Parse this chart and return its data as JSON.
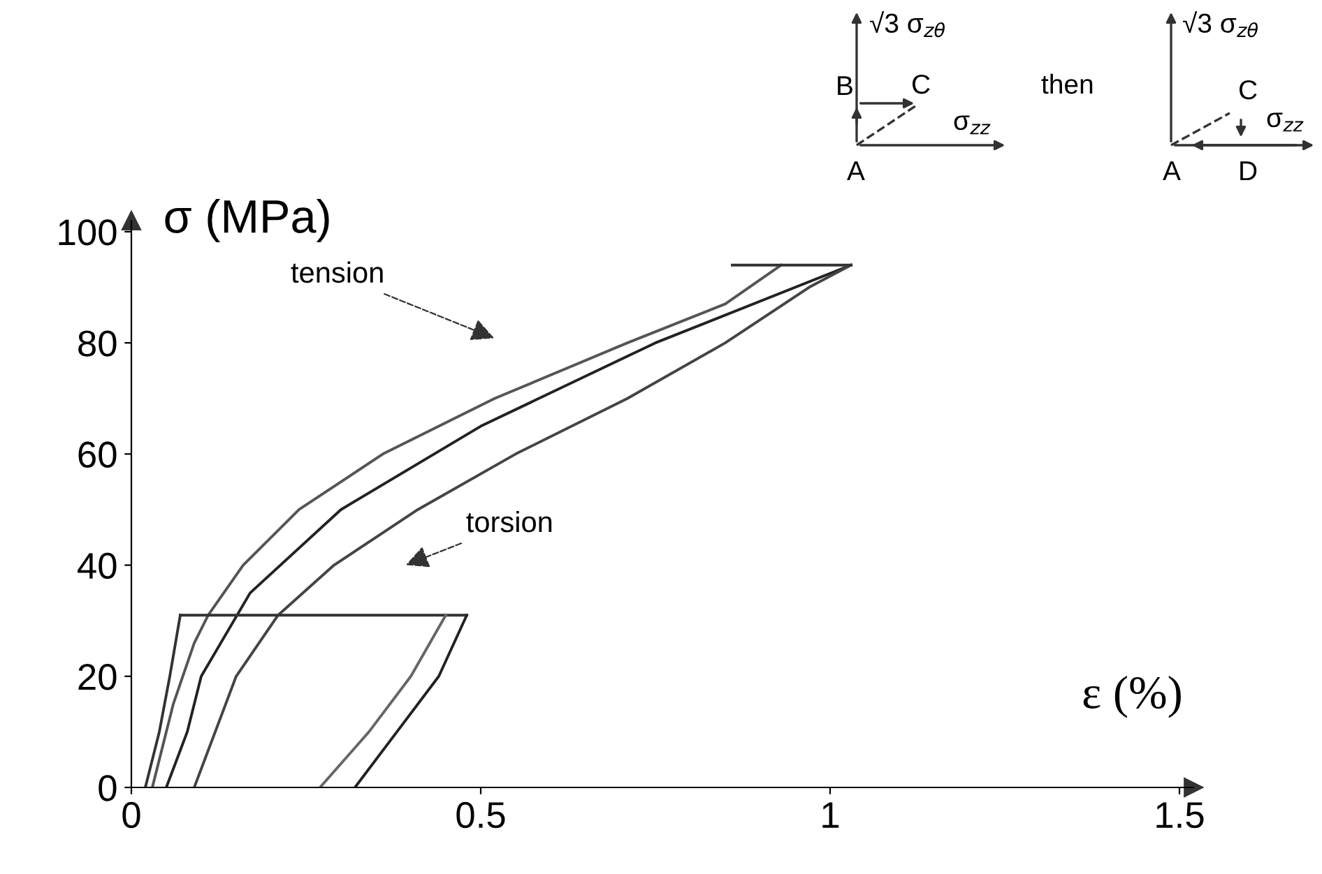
{
  "chart_data": {
    "type": "line",
    "xlabel": "ε (%)",
    "ylabel": "σ (MPa)",
    "xlim": [
      0,
      1.52
    ],
    "ylim": [
      0,
      102
    ],
    "xticks": [
      0,
      0.5,
      1,
      1.5
    ],
    "yticks": [
      0,
      20,
      40,
      60,
      80,
      100
    ],
    "grid": false,
    "legend": false,
    "marker": "none",
    "line_style": "solid",
    "series": [
      {
        "color": "#555555",
        "x": [
          0.03,
          0.06,
          0.09,
          0.11,
          0.16,
          0.24,
          0.36,
          0.52,
          0.71,
          0.85,
          0.93
        ],
        "values": [
          0,
          15,
          26,
          31,
          40,
          50,
          60,
          70,
          80,
          87,
          94
        ]
      },
      {
        "color": "#222222",
        "x": [
          0.05,
          0.08,
          0.1,
          0.17,
          0.3,
          0.5,
          0.75,
          1.03
        ],
        "values": [
          0,
          10,
          20,
          35,
          50,
          65,
          80,
          94
        ]
      },
      {
        "color": "#444444",
        "x": [
          0.09,
          0.15,
          0.21,
          0.29,
          0.41,
          0.55,
          0.71,
          0.85,
          0.97,
          1.03
        ],
        "values": [
          0,
          20,
          31,
          40,
          50,
          60,
          70,
          80,
          90,
          94
        ]
      },
      {
        "color": "#333333",
        "x": [
          0.86,
          1.03
        ],
        "values": [
          94,
          94
        ]
      },
      {
        "color": "#333333",
        "x": [
          0.02,
          0.04,
          0.055,
          0.07
        ],
        "values": [
          0,
          10,
          20,
          31
        ]
      },
      {
        "color": "#333333",
        "x": [
          0.07,
          0.48
        ],
        "values": [
          31,
          31
        ]
      },
      {
        "color": "#222222",
        "x": [
          0.48,
          0.44,
          0.38,
          0.32
        ],
        "values": [
          31,
          20,
          10,
          0
        ]
      },
      {
        "color": "#666666",
        "x": [
          0.45,
          0.4,
          0.34,
          0.27
        ],
        "values": [
          31,
          20,
          10,
          0
        ]
      }
    ],
    "annotations": [
      "tension",
      "torsion",
      "√3 σ$_{zθ}$",
      "B",
      "C",
      "σ$_{zz}$",
      "A",
      "then",
      "√3 σ$_{zθ}$",
      "C",
      "σ$_{zz}$",
      "A",
      "D"
    ]
  }
}
